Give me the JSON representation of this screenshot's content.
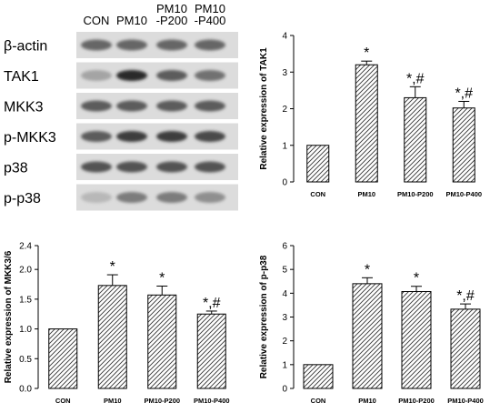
{
  "blot": {
    "lanes": [
      "CON",
      "PM10",
      "PM10\n-P200",
      "PM10\n-P400"
    ],
    "rows": [
      {
        "label": "β-actin",
        "intensity": [
          0.55,
          0.55,
          0.55,
          0.55
        ]
      },
      {
        "label": "TAK1",
        "intensity": [
          0.25,
          0.85,
          0.6,
          0.5
        ]
      },
      {
        "label": "MKK3",
        "intensity": [
          0.6,
          0.6,
          0.6,
          0.6
        ]
      },
      {
        "label": "p-MKK3",
        "intensity": [
          0.6,
          0.75,
          0.75,
          0.7
        ]
      },
      {
        "label": "p38",
        "intensity": [
          0.65,
          0.65,
          0.65,
          0.65
        ]
      },
      {
        "label": "p-p38",
        "intensity": [
          0.15,
          0.45,
          0.45,
          0.35
        ]
      }
    ]
  },
  "chart_data": [
    {
      "type": "bar",
      "ylabel": "Relative expression of TAK1",
      "categories": [
        "CON",
        "PM10",
        "PM10-P200",
        "PM10-P400"
      ],
      "values": [
        1.0,
        3.2,
        2.3,
        2.02
      ],
      "errors": [
        0,
        0.1,
        0.3,
        0.18
      ],
      "annotations": [
        "",
        "*",
        "*,#",
        "*,#"
      ],
      "ylim": [
        0,
        4
      ],
      "yticks": [
        0,
        1,
        2,
        3,
        4
      ],
      "ytick_labels": [
        "0",
        "1",
        "2",
        "3",
        "4"
      ]
    },
    {
      "type": "bar",
      "ylabel": "Relative expression of MKK3/6",
      "categories": [
        "CON",
        "PM10",
        "PM10-P200",
        "PM10-P400"
      ],
      "values": [
        1.0,
        1.73,
        1.57,
        1.25
      ],
      "errors": [
        0,
        0.18,
        0.15,
        0.05
      ],
      "annotations": [
        "",
        "*",
        "*",
        "*,#"
      ],
      "ylim": [
        0,
        2.4
      ],
      "yticks": [
        0,
        0.5,
        1,
        1.5,
        2,
        2.4
      ],
      "ytick_labels": [
        "0.0",
        "0.5",
        "1.0",
        "1.5",
        "2.0",
        "2.4"
      ]
    },
    {
      "type": "bar",
      "ylabel": "Relative expression of p-p38",
      "categories": [
        "CON",
        "PM10",
        "PM10-P200",
        "PM10-P400"
      ],
      "values": [
        1.0,
        4.4,
        4.07,
        3.33
      ],
      "errors": [
        0,
        0.25,
        0.22,
        0.22
      ],
      "annotations": [
        "",
        "*",
        "*",
        "*,#"
      ],
      "ylim": [
        0,
        6
      ],
      "yticks": [
        0,
        1,
        2,
        3,
        4,
        5,
        6
      ],
      "ytick_labels": [
        "0",
        "1",
        "2",
        "3",
        "4",
        "5",
        "6"
      ]
    }
  ]
}
